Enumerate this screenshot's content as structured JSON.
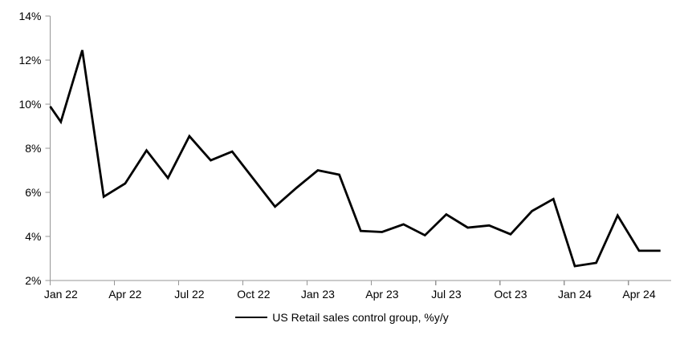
{
  "chart_data": {
    "type": "line",
    "title": "",
    "legend": {
      "label": "US Retail sales control group, %y/y",
      "position": "bottom-center"
    },
    "x": [
      "Jan 22",
      "Feb 22",
      "Mar 22",
      "Apr 22",
      "May 22",
      "Jun 22",
      "Jul 22",
      "Aug 22",
      "Sep 22",
      "Oct 22",
      "Nov 22",
      "Dec 22",
      "Jan 23",
      "Feb 23",
      "Mar 23",
      "Apr 23",
      "May 23",
      "Jun 23",
      "Jul 23",
      "Aug 23",
      "Sep 23",
      "Oct 23",
      "Nov 23",
      "Dec 23",
      "Jan 24",
      "Feb 24",
      "Mar 24",
      "Apr 24",
      "May 24"
    ],
    "series": [
      {
        "name": "US Retail sales control group, %y/y",
        "color": "#000000",
        "values": [
          9.2,
          12.45,
          5.8,
          6.4,
          7.9,
          6.65,
          8.55,
          7.45,
          7.85,
          6.6,
          5.35,
          6.2,
          7.0,
          6.8,
          4.25,
          4.2,
          4.55,
          4.05,
          5.0,
          4.4,
          4.5,
          4.1,
          5.15,
          5.7,
          2.65,
          2.8,
          4.95,
          3.35,
          3.35
        ],
        "clipped_left_edge_value": 9.9
      }
    ],
    "x_tick_labels": [
      "Jan 22",
      "Apr 22",
      "Jul 22",
      "Oct 22",
      "Jan 23",
      "Apr 23",
      "Jul 23",
      "Oct 23",
      "Jan 24",
      "Apr 24"
    ],
    "x_tick_interval": 3,
    "ylim": [
      2,
      14
    ],
    "y_ticks": [
      2,
      4,
      6,
      8,
      10,
      12,
      14
    ],
    "y_tick_format": "{v}%",
    "xlabel": "",
    "ylabel": "",
    "grid": "off",
    "axis_color": "#969696",
    "text_color": "#000000",
    "background": "#ffffff"
  }
}
